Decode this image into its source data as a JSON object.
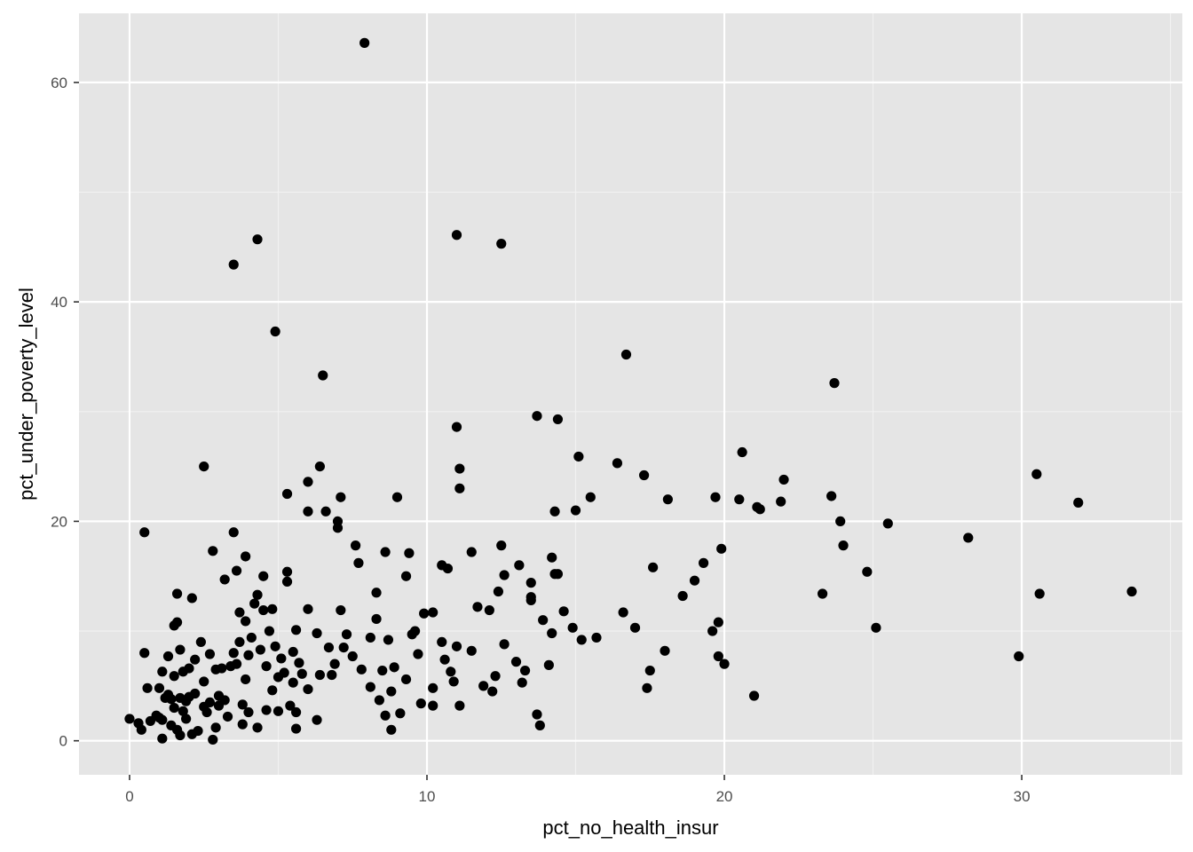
{
  "colors": {
    "panel_background": "#e5e5e5",
    "grid_major": "#ffffff",
    "grid_minor": "#f2f2f2",
    "point": "#000000",
    "tick_label": "#4d4d4d"
  },
  "chart_data": {
    "type": "scatter",
    "title": "",
    "xlabel": "pct_no_health_insur",
    "ylabel": "pct_under_poverty_level",
    "xlim": [
      -1.7,
      35.4
    ],
    "ylim": [
      -3.1,
      66.3
    ],
    "x_ticks": [
      0,
      10,
      20,
      30
    ],
    "y_ticks": [
      0,
      20,
      40,
      60
    ],
    "x_tick_labels": [
      "0",
      "10",
      "20",
      "30"
    ],
    "y_tick_labels": [
      "0",
      "20",
      "40",
      "60"
    ],
    "grid": true,
    "legend": "none",
    "points": [
      [
        0.0,
        2.0
      ],
      [
        0.3,
        1.6
      ],
      [
        0.4,
        1.0
      ],
      [
        0.5,
        19.0
      ],
      [
        0.5,
        8.0
      ],
      [
        0.6,
        4.8
      ],
      [
        0.7,
        1.8
      ],
      [
        0.9,
        2.3
      ],
      [
        1.0,
        2.1
      ],
      [
        1.0,
        4.8
      ],
      [
        1.1,
        1.9
      ],
      [
        1.1,
        6.3
      ],
      [
        1.1,
        0.2
      ],
      [
        1.2,
        3.9
      ],
      [
        1.3,
        7.7
      ],
      [
        1.3,
        4.2
      ],
      [
        1.4,
        1.4
      ],
      [
        1.4,
        3.8
      ],
      [
        1.5,
        5.9
      ],
      [
        1.5,
        10.5
      ],
      [
        1.5,
        3.0
      ],
      [
        1.6,
        10.8
      ],
      [
        1.6,
        13.4
      ],
      [
        1.6,
        1.0
      ],
      [
        1.7,
        8.3
      ],
      [
        1.7,
        0.5
      ],
      [
        1.7,
        3.9
      ],
      [
        1.8,
        6.3
      ],
      [
        1.8,
        2.7
      ],
      [
        1.9,
        3.6
      ],
      [
        1.9,
        2.0
      ],
      [
        2.0,
        4.0
      ],
      [
        2.0,
        6.6
      ],
      [
        2.1,
        13.0
      ],
      [
        2.1,
        0.6
      ],
      [
        2.2,
        7.4
      ],
      [
        2.2,
        4.3
      ],
      [
        2.3,
        0.9
      ],
      [
        2.4,
        9.0
      ],
      [
        2.5,
        3.1
      ],
      [
        2.5,
        5.4
      ],
      [
        2.5,
        25.0
      ],
      [
        2.6,
        2.6
      ],
      [
        2.7,
        7.9
      ],
      [
        2.7,
        3.5
      ],
      [
        2.8,
        17.3
      ],
      [
        2.8,
        0.1
      ],
      [
        2.9,
        6.5
      ],
      [
        2.9,
        1.2
      ],
      [
        3.0,
        4.1
      ],
      [
        3.0,
        3.2
      ],
      [
        3.1,
        6.6
      ],
      [
        3.2,
        14.7
      ],
      [
        3.2,
        3.7
      ],
      [
        3.3,
        2.2
      ],
      [
        3.4,
        6.8
      ],
      [
        3.5,
        8.0
      ],
      [
        3.5,
        43.4
      ],
      [
        3.5,
        19.0
      ],
      [
        3.6,
        7.0
      ],
      [
        3.6,
        15.5
      ],
      [
        3.7,
        11.7
      ],
      [
        3.7,
        9.0
      ],
      [
        3.8,
        3.3
      ],
      [
        3.8,
        1.5
      ],
      [
        3.9,
        16.8
      ],
      [
        3.9,
        10.9
      ],
      [
        3.9,
        5.6
      ],
      [
        4.0,
        7.8
      ],
      [
        4.0,
        2.6
      ],
      [
        4.1,
        9.4
      ],
      [
        4.2,
        12.5
      ],
      [
        4.3,
        13.3
      ],
      [
        4.3,
        45.7
      ],
      [
        4.3,
        1.2
      ],
      [
        4.4,
        8.3
      ],
      [
        4.5,
        11.9
      ],
      [
        4.5,
        15.0
      ],
      [
        4.6,
        6.8
      ],
      [
        4.6,
        2.8
      ],
      [
        4.7,
        10.0
      ],
      [
        4.8,
        12.0
      ],
      [
        4.8,
        4.6
      ],
      [
        4.9,
        8.6
      ],
      [
        4.9,
        37.3
      ],
      [
        5.0,
        5.8
      ],
      [
        5.0,
        2.7
      ],
      [
        5.1,
        7.5
      ],
      [
        5.2,
        6.2
      ],
      [
        5.3,
        15.4
      ],
      [
        5.3,
        22.5
      ],
      [
        5.3,
        14.5
      ],
      [
        5.4,
        3.2
      ],
      [
        5.5,
        8.1
      ],
      [
        5.5,
        5.3
      ],
      [
        5.6,
        10.1
      ],
      [
        5.6,
        2.6
      ],
      [
        5.6,
        1.1
      ],
      [
        5.7,
        7.1
      ],
      [
        5.8,
        6.1
      ],
      [
        6.0,
        23.6
      ],
      [
        6.0,
        20.9
      ],
      [
        6.0,
        12.0
      ],
      [
        6.0,
        4.7
      ],
      [
        6.3,
        9.8
      ],
      [
        6.3,
        1.9
      ],
      [
        6.4,
        25.0
      ],
      [
        6.4,
        6.0
      ],
      [
        6.5,
        33.3
      ],
      [
        6.6,
        20.9
      ],
      [
        6.7,
        8.5
      ],
      [
        6.8,
        6.0
      ],
      [
        6.9,
        7.0
      ],
      [
        7.0,
        19.4
      ],
      [
        7.0,
        20.0
      ],
      [
        7.1,
        22.2
      ],
      [
        7.1,
        11.9
      ],
      [
        7.2,
        8.5
      ],
      [
        7.3,
        9.7
      ],
      [
        7.5,
        7.7
      ],
      [
        7.6,
        17.8
      ],
      [
        7.7,
        16.2
      ],
      [
        7.8,
        6.5
      ],
      [
        7.9,
        63.6
      ],
      [
        8.1,
        9.4
      ],
      [
        8.1,
        4.9
      ],
      [
        8.3,
        13.5
      ],
      [
        8.3,
        11.1
      ],
      [
        8.4,
        3.7
      ],
      [
        8.5,
        6.4
      ],
      [
        8.6,
        17.2
      ],
      [
        8.6,
        2.3
      ],
      [
        8.7,
        9.2
      ],
      [
        8.8,
        4.5
      ],
      [
        8.8,
        1.0
      ],
      [
        8.9,
        6.7
      ],
      [
        9.0,
        22.2
      ],
      [
        9.1,
        2.5
      ],
      [
        9.3,
        5.6
      ],
      [
        9.3,
        15.0
      ],
      [
        9.4,
        17.1
      ],
      [
        9.5,
        9.7
      ],
      [
        9.6,
        10.0
      ],
      [
        9.7,
        7.9
      ],
      [
        9.8,
        3.4
      ],
      [
        9.9,
        11.6
      ],
      [
        10.2,
        11.7
      ],
      [
        10.2,
        4.8
      ],
      [
        10.2,
        3.2
      ],
      [
        10.5,
        9.0
      ],
      [
        10.5,
        16.0
      ],
      [
        10.6,
        7.4
      ],
      [
        10.7,
        15.7
      ],
      [
        10.8,
        6.3
      ],
      [
        10.9,
        5.4
      ],
      [
        11.0,
        46.1
      ],
      [
        11.0,
        8.6
      ],
      [
        11.0,
        28.6
      ],
      [
        11.1,
        3.2
      ],
      [
        11.1,
        24.8
      ],
      [
        11.1,
        23.0
      ],
      [
        11.5,
        17.2
      ],
      [
        11.5,
        8.2
      ],
      [
        11.7,
        12.2
      ],
      [
        11.9,
        5.0
      ],
      [
        12.1,
        11.9
      ],
      [
        12.2,
        4.5
      ],
      [
        12.3,
        5.9
      ],
      [
        12.4,
        13.6
      ],
      [
        12.5,
        17.8
      ],
      [
        12.5,
        45.3
      ],
      [
        12.6,
        15.1
      ],
      [
        12.6,
        8.8
      ],
      [
        13.0,
        7.2
      ],
      [
        13.1,
        16.0
      ],
      [
        13.2,
        5.3
      ],
      [
        13.3,
        6.4
      ],
      [
        13.5,
        14.4
      ],
      [
        13.5,
        13.1
      ],
      [
        13.5,
        12.8
      ],
      [
        13.7,
        29.6
      ],
      [
        13.7,
        2.4
      ],
      [
        13.8,
        1.4
      ],
      [
        13.9,
        11.0
      ],
      [
        14.1,
        6.9
      ],
      [
        14.2,
        16.7
      ],
      [
        14.2,
        9.8
      ],
      [
        14.3,
        20.9
      ],
      [
        14.3,
        15.2
      ],
      [
        14.4,
        29.3
      ],
      [
        14.4,
        15.2
      ],
      [
        14.6,
        11.8
      ],
      [
        14.9,
        10.3
      ],
      [
        15.0,
        21.0
      ],
      [
        15.1,
        25.9
      ],
      [
        15.2,
        9.2
      ],
      [
        15.5,
        22.2
      ],
      [
        15.7,
        9.4
      ],
      [
        16.4,
        25.3
      ],
      [
        16.6,
        11.7
      ],
      [
        16.7,
        35.2
      ],
      [
        17.0,
        10.3
      ],
      [
        17.3,
        24.2
      ],
      [
        17.4,
        4.8
      ],
      [
        17.5,
        6.4
      ],
      [
        17.6,
        15.8
      ],
      [
        18.0,
        8.2
      ],
      [
        18.1,
        22.0
      ],
      [
        18.6,
        13.2
      ],
      [
        19.0,
        14.6
      ],
      [
        19.3,
        16.2
      ],
      [
        19.6,
        10.0
      ],
      [
        19.7,
        22.2
      ],
      [
        19.8,
        10.8
      ],
      [
        19.8,
        7.7
      ],
      [
        19.9,
        17.5
      ],
      [
        20.0,
        7.0
      ],
      [
        20.5,
        22.0
      ],
      [
        20.6,
        26.3
      ],
      [
        21.0,
        4.1
      ],
      [
        21.1,
        21.3
      ],
      [
        21.2,
        21.1
      ],
      [
        21.9,
        21.8
      ],
      [
        22.0,
        23.8
      ],
      [
        23.3,
        13.4
      ],
      [
        23.6,
        22.3
      ],
      [
        23.7,
        32.6
      ],
      [
        23.9,
        20.0
      ],
      [
        24.0,
        17.8
      ],
      [
        24.8,
        15.4
      ],
      [
        25.1,
        10.3
      ],
      [
        25.5,
        19.8
      ],
      [
        28.2,
        18.5
      ],
      [
        29.9,
        7.7
      ],
      [
        30.5,
        24.3
      ],
      [
        30.6,
        13.4
      ],
      [
        31.9,
        21.7
      ],
      [
        33.7,
        13.6
      ]
    ]
  }
}
